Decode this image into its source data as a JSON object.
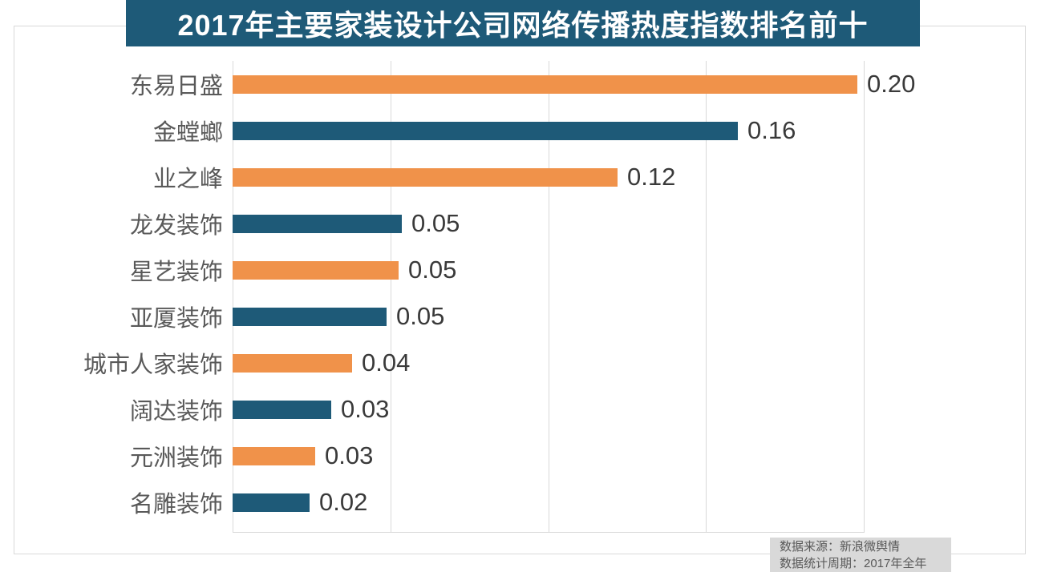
{
  "chart": {
    "title": "2017年主要家装设计公司网络传播热度指数排名前十"
  },
  "chart_data": {
    "type": "bar",
    "orientation": "horizontal",
    "title": "2017年主要家装设计公司网络传播热度指数排名前十",
    "categories": [
      "东易日盛",
      "金螳螂",
      "业之峰",
      "龙发装饰",
      "星艺装饰",
      "亚厦装饰",
      "城市人家装饰",
      "阔达装饰",
      "元洲装饰",
      "名雕装饰"
    ],
    "values": [
      0.2,
      0.16,
      0.12,
      0.05,
      0.05,
      0.05,
      0.04,
      0.03,
      0.03,
      0.02
    ],
    "value_labels": [
      "0.20",
      "0.16",
      "0.12",
      "0.05",
      "0.05",
      "0.05",
      "0.04",
      "0.03",
      "0.03",
      "0.02"
    ],
    "bar_length_estimates": [
      0.198,
      0.16,
      0.122,
      0.0536,
      0.0526,
      0.0488,
      0.0379,
      0.0312,
      0.0262,
      0.0244
    ],
    "xlabel": "",
    "ylabel": "",
    "xlim": [
      0,
      0.2
    ],
    "gridline_values": [
      0,
      0.05,
      0.1,
      0.15,
      0.2
    ],
    "grid": true,
    "legend": false,
    "bar_color_pattern_note": "bars alternate orange / dark blue from top"
  },
  "footer": {
    "source": "数据来源：新浪微舆情",
    "period": "数据统计周期：2017年全年"
  },
  "colors": {
    "title_bg": "#1E5A78",
    "title_text": "#FFFFFF",
    "bar_orange": "#F0924A",
    "bar_blue": "#1E5A78",
    "category_text": "#595959",
    "value_text": "#3A3A3A",
    "gridline": "#D9D9D9",
    "frame_border": "#D9D9D9",
    "footer_bg": "#D9D9D9",
    "footer_text": "#595959"
  }
}
